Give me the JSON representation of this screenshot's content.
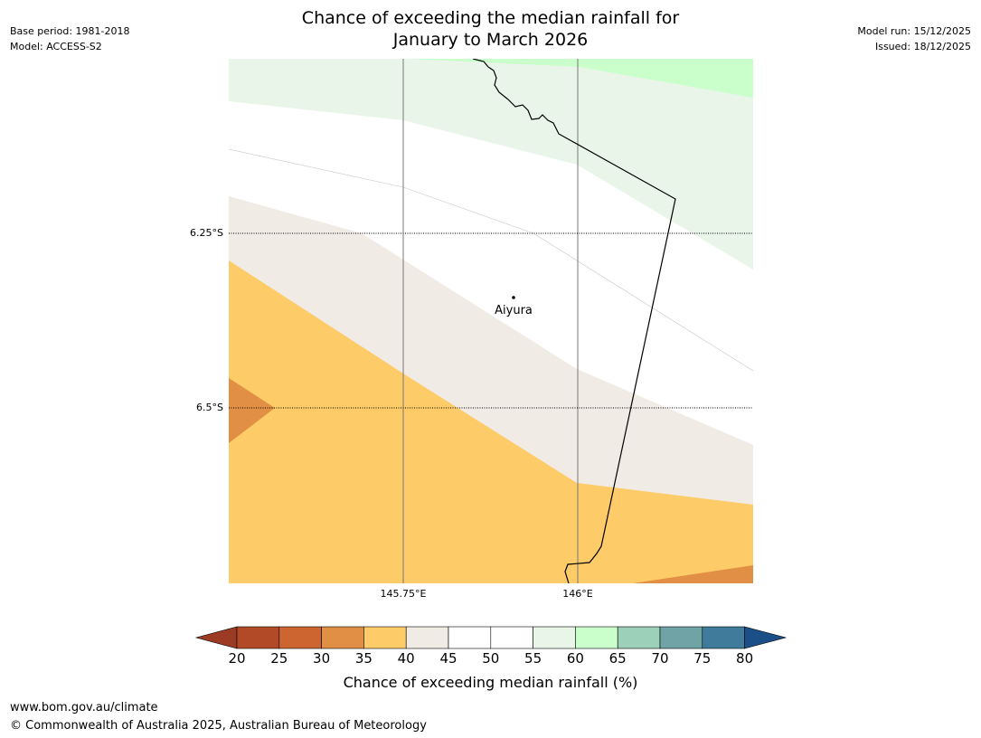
{
  "header": {
    "base_period": "Base period: 1981-2018",
    "model": "Model: ACCESS-S2",
    "title_line1": "Chance of exceeding the median rainfall for",
    "title_line2": "January to March 2026",
    "model_run": "Model run: 15/12/2025",
    "issued": "Issued: 18/12/2025"
  },
  "map": {
    "lat_labels": [
      "6.25°S",
      "6.5°S"
    ],
    "lon_labels": [
      "145.75°E",
      "146°E"
    ],
    "place_name": "Aiyura"
  },
  "colorbar": {
    "ticks": [
      "20",
      "25",
      "30",
      "35",
      "40",
      "45",
      "50",
      "55",
      "60",
      "65",
      "70",
      "75",
      "80"
    ],
    "colors": [
      "#9c3a23",
      "#b24a27",
      "#cd6531",
      "#e18f44",
      "#fdcb67",
      "#f0ebe5",
      "#ffffff",
      "#ffffff",
      "#e9f5e9",
      "#caffcc",
      "#9dd0b9",
      "#6fa3a5",
      "#407b9b",
      "#1a4f88"
    ],
    "label": "Chance of exceeding median rainfall (%)"
  },
  "footer": {
    "url": "www.bom.gov.au/climate",
    "copyright": "© Commonwealth of Australia 2025, Australian Bureau of Meteorology"
  }
}
